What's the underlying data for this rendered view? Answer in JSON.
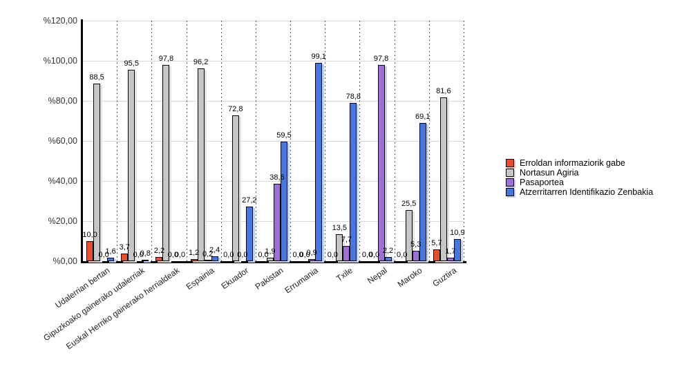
{
  "chart_data": {
    "type": "bar",
    "title": "",
    "xlabel": "",
    "ylabel": "",
    "categories": [
      "Udalerrian bertan",
      "Gipuzkoako gainerako udalerriak",
      "Euskal Herriko gainerako herrialdeak",
      "Espainia",
      "Ekuador",
      "Pakistan",
      "Errumania",
      "Txile",
      "Nepal",
      "Maroko",
      "Guztira"
    ],
    "series": [
      {
        "name": "Erroldan informaziorik gabe",
        "color": "#E74E2C",
        "shadow_color": "#F6C3B3",
        "values": [
          10.0,
          3.7,
          2.2,
          1.2,
          0.0,
          0.0,
          0.0,
          0.0,
          0.0,
          0.0,
          5.7
        ]
      },
      {
        "name": "Nortasun Agiria",
        "color": "#C6C6C6",
        "shadow_color": "#E2E2E2",
        "values": [
          88.5,
          95.5,
          97.8,
          96.2,
          72.8,
          1.9,
          0.0,
          13.5,
          0.0,
          25.5,
          81.6
        ]
      },
      {
        "name": "Pasaportea",
        "color": "#9F6FD8",
        "shadow_color": "#DCC9F1",
        "values": [
          0.0,
          0.0,
          0.0,
          0.2,
          0.0,
          38.6,
          0.9,
          7.7,
          97.8,
          5.3,
          1.7
        ]
      },
      {
        "name": "Atzerritarren Identifikazio Zenbakia",
        "color": "#4478E0",
        "shadow_color": "#BFD2F6",
        "values": [
          1.6,
          0.8,
          0.0,
          2.4,
          27.2,
          59.5,
          99.1,
          78.8,
          2.2,
          69.1,
          10.9
        ]
      }
    ],
    "ylim": [
      0,
      120
    ],
    "ytick_values": [
      0,
      20,
      40,
      60,
      80,
      100,
      120
    ],
    "ytick_labels": [
      "%0,00",
      "%20,00",
      "%40,00",
      "%60,00",
      "%80,00",
      "%100,00",
      "%120,00"
    ],
    "grid": true,
    "grid_vertical_separators": "dotted",
    "legend_position": "right",
    "value_labels": true,
    "decimal_separator": ","
  }
}
